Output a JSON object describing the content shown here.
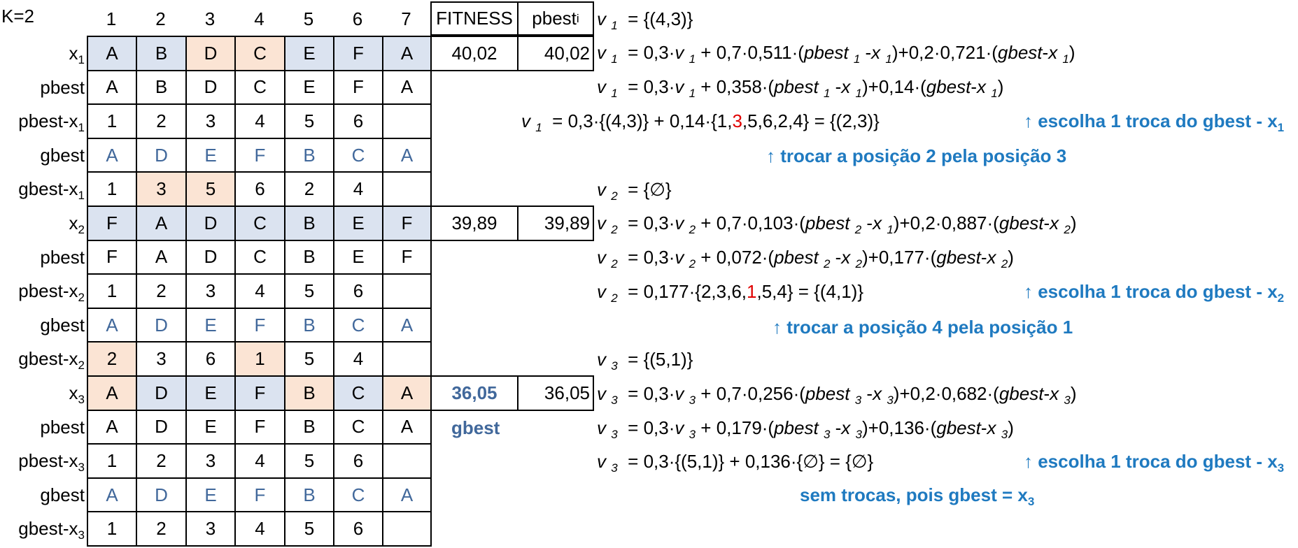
{
  "k_label": "K=2",
  "col_headers": [
    "1",
    "2",
    "3",
    "4",
    "5",
    "6",
    "7"
  ],
  "fitness_header": "FITNESS",
  "pbest_header": "pbest",
  "pbest_header_sub": "i",
  "rows": [
    {
      "label": "x",
      "sub": "1",
      "cells": [
        "A",
        "B",
        "D",
        "C",
        "E",
        "F",
        "A"
      ],
      "bg": [
        "b",
        "b",
        "o",
        "o",
        "b",
        "b",
        "b"
      ],
      "fitness": "40,02",
      "pbest": "40,02"
    },
    {
      "label": "pbest",
      "sub": "",
      "cells": [
        "A",
        "B",
        "D",
        "C",
        "E",
        "F",
        "A"
      ]
    },
    {
      "label": "pbest-x",
      "sub": "1",
      "cells": [
        "1",
        "2",
        "3",
        "4",
        "5",
        "6",
        ""
      ]
    },
    {
      "label": "gbest",
      "sub": "",
      "cells": [
        "A",
        "D",
        "E",
        "F",
        "B",
        "C",
        "A"
      ],
      "blue": true
    },
    {
      "label": "gbest-x",
      "sub": "1",
      "cells": [
        "1",
        "3",
        "5",
        "6",
        "2",
        "4",
        ""
      ],
      "bg": [
        "",
        "o",
        "o",
        "",
        "",
        "",
        ""
      ]
    },
    {
      "label": "x",
      "sub": "2",
      "cells": [
        "F",
        "A",
        "D",
        "C",
        "B",
        "E",
        "F"
      ],
      "bg": [
        "b",
        "b",
        "b",
        "b",
        "b",
        "b",
        "b"
      ],
      "fitness": "39,89",
      "pbest": "39,89"
    },
    {
      "label": "pbest",
      "sub": "",
      "cells": [
        "F",
        "A",
        "D",
        "C",
        "B",
        "E",
        "F"
      ]
    },
    {
      "label": "pbest-x",
      "sub": "2",
      "cells": [
        "1",
        "2",
        "3",
        "4",
        "5",
        "6",
        ""
      ]
    },
    {
      "label": "gbest",
      "sub": "",
      "cells": [
        "A",
        "D",
        "E",
        "F",
        "B",
        "C",
        "A"
      ],
      "blue": true
    },
    {
      "label": "gbest-x",
      "sub": "2",
      "cells": [
        "2",
        "3",
        "6",
        "1",
        "5",
        "4",
        ""
      ],
      "bg": [
        "o",
        "",
        "",
        "o",
        "",
        "",
        ""
      ]
    },
    {
      "label": "x",
      "sub": "3",
      "cells": [
        "A",
        "D",
        "E",
        "F",
        "B",
        "C",
        "A"
      ],
      "bg": [
        "o",
        "b",
        "b",
        "b",
        "o",
        "b",
        "o"
      ],
      "fitness": "36,05",
      "pbest": "36,05",
      "fitness_bold": true
    },
    {
      "label": "pbest",
      "sub": "",
      "cells": [
        "A",
        "D",
        "E",
        "F",
        "B",
        "C",
        "A"
      ]
    },
    {
      "label": "pbest-x",
      "sub": "3",
      "cells": [
        "1",
        "2",
        "3",
        "4",
        "5",
        "6",
        ""
      ]
    },
    {
      "label": "gbest",
      "sub": "",
      "cells": [
        "A",
        "D",
        "E",
        "F",
        "B",
        "C",
        "A"
      ],
      "blue": true
    },
    {
      "label": "gbest-x",
      "sub": "3",
      "cells": [
        "1",
        "2",
        "3",
        "4",
        "5",
        "6",
        ""
      ]
    }
  ],
  "gbest_tag": "gbest",
  "equations": {
    "e1": "= {(4,3)}",
    "e2a": "= 0,3·",
    "e2b": " + 0,7·0,511·(",
    "e2c": ")+0,2·0,721·(",
    "e3a": "= 0,3·",
    "e3b": " + 0,358·(",
    "e3c": ")+0,14·(",
    "e4a": "= 0,3·{(4,3)} + 0,14·{1,",
    "e4red": "3",
    "e4b": ",5,6,2,4} = {(2,3)}",
    "e5": "= {∅}",
    "e6b": " + 0,7·0,103·(",
    "e6c": ")+0,2·0,887·(",
    "e7b": " + 0,072·(",
    "e7c": ")+0,177·(",
    "e8a": "= 0,177·{2,3,6,",
    "e8red": "1",
    "e8b": ",5,4} = {(4,1)}",
    "e9": "= {(5,1)}",
    "e10b": " + 0,7·0,256·(",
    "e10c": ")+0,2·0,682·(",
    "e11b": " + 0,179·(",
    "e11c": ")+0,136·(",
    "e12a": "= 0,3·{(5,1)} + 0,136·{∅} = {∅}"
  },
  "notes": {
    "n1": "↑ escolha 1 troca do gbest - x",
    "n1sub": "1",
    "n2": "↑ trocar a posição 2 pela posição 3",
    "n3": "↑ escolha 1 troca do gbest - x",
    "n3sub": "2",
    "n4": "↑ trocar a posição 4 pela posição 1",
    "n5": "↑ escolha 1 troca do gbest - x",
    "n5sub": "3",
    "n6": "sem trocas, pois gbest = x",
    "n6sub": "3"
  },
  "colors": {
    "blue_fill": "#dbe3f0",
    "orange_fill": "#fbe4d4",
    "blue_text": "#41689b",
    "note_blue": "#1f7ac0",
    "red": "#e00000"
  }
}
